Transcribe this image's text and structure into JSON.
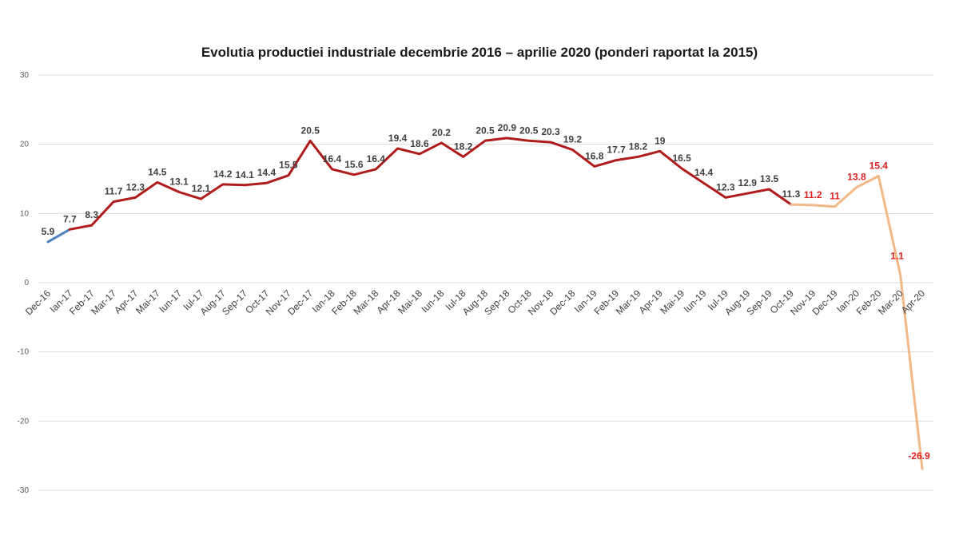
{
  "chart_data": {
    "type": "line",
    "title": "Evolutia productiei industriale decembrie 2016 – aprilie 2020 (ponderi raportat la 2015)",
    "xlabel": "",
    "ylabel": "",
    "ylim": [
      -30,
      30
    ],
    "yticks": [
      30,
      20,
      10,
      0,
      -10,
      -20,
      -30
    ],
    "grid": true,
    "legend": "none",
    "categories": [
      "Dec-16",
      "Ian-17",
      "Feb-17",
      "Mar-17",
      "Apr-17",
      "Mai-17",
      "Iun-17",
      "Iul-17",
      "Aug-17",
      "Sep-17",
      "Oct-17",
      "Nov-17",
      "Dec-17",
      "Ian-18",
      "Feb-18",
      "Mar-18",
      "Apr-18",
      "Mai-18",
      "Iun-18",
      "Iul-18",
      "Aug-18",
      "Sep-18",
      "Oct-18",
      "Nov-18",
      "Dec-18",
      "Ian-19",
      "Feb-19",
      "Mar-19",
      "Apr-19",
      "Mai-19",
      "Iun-19",
      "Iul-19",
      "Aug-19",
      "Sep-19",
      "Oct-19",
      "Nov-19",
      "Dec-19",
      "Ian-20",
      "Feb-20",
      "Mar-20",
      "Apr-20"
    ],
    "values": [
      5.9,
      7.7,
      8.3,
      11.7,
      12.3,
      14.5,
      13.1,
      12.1,
      14.2,
      14.1,
      14.4,
      15.5,
      20.5,
      16.4,
      15.6,
      16.4,
      19.4,
      18.6,
      20.2,
      18.2,
      20.5,
      20.9,
      20.5,
      20.3,
      19.2,
      16.8,
      17.7,
      18.2,
      19,
      16.5,
      14.4,
      12.3,
      12.9,
      13.5,
      11.3,
      11.2,
      11,
      13.8,
      15.4,
      1.1,
      -26.9
    ],
    "labels": [
      "5.9",
      "7.7",
      "8.3",
      "11.7",
      "12.3",
      "14.5",
      "13.1",
      "12.1",
      "14.2",
      "14.1",
      "14.4",
      "15.5",
      "20.5",
      "16.4",
      "15.6",
      "16.4",
      "19.4",
      "18.6",
      "20.2",
      "18.2",
      "20.5",
      "20.9",
      "20.5",
      "20.3",
      "19.2",
      "16.8",
      "17.7",
      "18.2",
      "19",
      "16.5",
      "14.4",
      "12.3",
      "12.9",
      "13.5",
      "11.3",
      "11.2",
      "11",
      "13.8",
      "15.4",
      "1.1",
      "-26.9"
    ],
    "segments": [
      {
        "from": 0,
        "to": 1,
        "color": "#4f81bd"
      },
      {
        "from": 1,
        "to": 34,
        "color": "#b01c1c"
      },
      {
        "from": 34,
        "to": 40,
        "color": "#f2b887"
      }
    ],
    "label_colors": {
      "default": "#404040",
      "highlight": "#e02020",
      "highlight_from": 35
    },
    "grid_color": "#d9d9d9"
  }
}
